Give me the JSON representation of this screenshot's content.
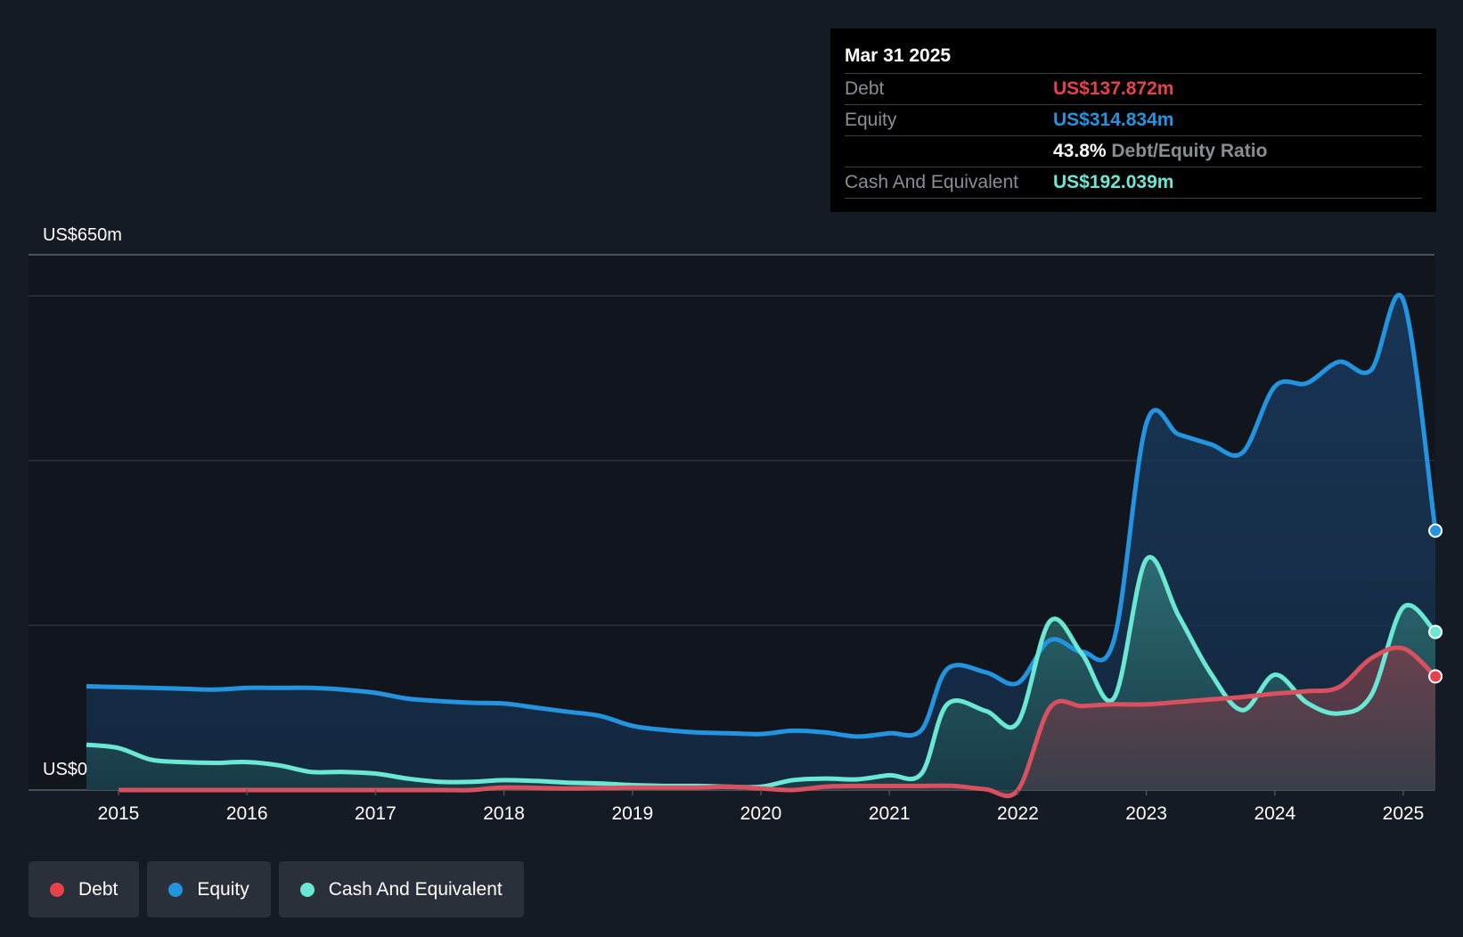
{
  "tooltip": {
    "date": "Mar 31 2025",
    "rows": [
      {
        "label": "Debt",
        "value": "US$137.872m",
        "color": "#e8414b"
      },
      {
        "label": "Equity",
        "value": "US$314.834m",
        "color": "#2394e0"
      },
      {
        "label": "",
        "value": "43.8%",
        "suffix": "Debt/Equity Ratio"
      },
      {
        "label": "Cash And Equivalent",
        "value": "US$192.039m",
        "color": "#6be8d3"
      }
    ]
  },
  "legend": [
    {
      "label": "Debt",
      "color": "#e8414b"
    },
    {
      "label": "Equity",
      "color": "#2394e0"
    },
    {
      "label": "Cash And Equivalent",
      "color": "#6be8d3"
    }
  ],
  "chart_data": {
    "type": "area",
    "ylabel_top": "US$650m",
    "ylabel_bottom": "US$0",
    "ylim": [
      0,
      650
    ],
    "xlim": [
      2014.73,
      2025.25
    ],
    "x_ticks": [
      "2015",
      "2016",
      "2017",
      "2018",
      "2019",
      "2020",
      "2021",
      "2022",
      "2023",
      "2024",
      "2025"
    ],
    "series": [
      {
        "name": "Equity",
        "color": "#2394e0",
        "points": [
          [
            2014.75,
            126
          ],
          [
            2015.0,
            125
          ],
          [
            2015.25,
            124
          ],
          [
            2015.5,
            123
          ],
          [
            2015.75,
            122
          ],
          [
            2016.0,
            124
          ],
          [
            2016.25,
            124
          ],
          [
            2016.5,
            124
          ],
          [
            2016.75,
            122
          ],
          [
            2017.0,
            118
          ],
          [
            2017.25,
            111
          ],
          [
            2017.5,
            108
          ],
          [
            2017.75,
            106
          ],
          [
            2018.0,
            105
          ],
          [
            2018.25,
            100
          ],
          [
            2018.5,
            95
          ],
          [
            2018.75,
            90
          ],
          [
            2019.0,
            78
          ],
          [
            2019.25,
            73
          ],
          [
            2019.5,
            70
          ],
          [
            2019.75,
            69
          ],
          [
            2020.0,
            68
          ],
          [
            2020.25,
            72
          ],
          [
            2020.5,
            70
          ],
          [
            2020.75,
            65
          ],
          [
            2021.0,
            69
          ],
          [
            2021.25,
            73
          ],
          [
            2021.45,
            147
          ],
          [
            2021.75,
            143
          ],
          [
            2022.0,
            130
          ],
          [
            2022.25,
            182
          ],
          [
            2022.5,
            168
          ],
          [
            2022.75,
            183
          ],
          [
            2023.0,
            445
          ],
          [
            2023.25,
            432
          ],
          [
            2023.5,
            420
          ],
          [
            2023.75,
            410
          ],
          [
            2024.0,
            490
          ],
          [
            2024.25,
            494
          ],
          [
            2024.5,
            520
          ],
          [
            2024.75,
            510
          ],
          [
            2025.0,
            595
          ],
          [
            2025.25,
            315
          ]
        ]
      },
      {
        "name": "Cash And Equivalent",
        "color": "#6be8d3",
        "points": [
          [
            2014.75,
            55
          ],
          [
            2015.0,
            51
          ],
          [
            2015.25,
            37
          ],
          [
            2015.5,
            34
          ],
          [
            2015.75,
            33
          ],
          [
            2016.0,
            34
          ],
          [
            2016.25,
            30
          ],
          [
            2016.5,
            22
          ],
          [
            2016.75,
            22
          ],
          [
            2017.0,
            20
          ],
          [
            2017.25,
            14
          ],
          [
            2017.5,
            10
          ],
          [
            2017.75,
            10
          ],
          [
            2018.0,
            12
          ],
          [
            2018.25,
            11
          ],
          [
            2018.5,
            9
          ],
          [
            2018.75,
            8
          ],
          [
            2019.0,
            6
          ],
          [
            2019.25,
            5
          ],
          [
            2019.5,
            5
          ],
          [
            2019.75,
            4
          ],
          [
            2020.0,
            4
          ],
          [
            2020.25,
            12
          ],
          [
            2020.5,
            14
          ],
          [
            2020.75,
            13
          ],
          [
            2021.0,
            18
          ],
          [
            2021.25,
            20
          ],
          [
            2021.45,
            104
          ],
          [
            2021.75,
            96
          ],
          [
            2022.0,
            82
          ],
          [
            2022.25,
            205
          ],
          [
            2022.5,
            165
          ],
          [
            2022.75,
            112
          ],
          [
            2023.0,
            280
          ],
          [
            2023.25,
            212
          ],
          [
            2023.5,
            142
          ],
          [
            2023.75,
            97
          ],
          [
            2024.0,
            140
          ],
          [
            2024.25,
            106
          ],
          [
            2024.5,
            93
          ],
          [
            2024.75,
            115
          ],
          [
            2025.0,
            222
          ],
          [
            2025.25,
            192
          ]
        ]
      },
      {
        "name": "Debt",
        "color": "#e8414b",
        "points": [
          [
            2015.0,
            0
          ],
          [
            2015.5,
            0
          ],
          [
            2016.0,
            0
          ],
          [
            2016.5,
            0
          ],
          [
            2017.0,
            0
          ],
          [
            2017.5,
            0
          ],
          [
            2017.75,
            0
          ],
          [
            2018.0,
            3
          ],
          [
            2018.5,
            2
          ],
          [
            2019.0,
            3
          ],
          [
            2019.5,
            3
          ],
          [
            2019.75,
            4
          ],
          [
            2020.0,
            2
          ],
          [
            2020.25,
            0
          ],
          [
            2020.5,
            4
          ],
          [
            2020.75,
            5
          ],
          [
            2021.0,
            5
          ],
          [
            2021.25,
            5
          ],
          [
            2021.5,
            5
          ],
          [
            2021.75,
            1
          ],
          [
            2022.0,
            0
          ],
          [
            2022.25,
            100
          ],
          [
            2022.5,
            102
          ],
          [
            2022.75,
            104
          ],
          [
            2023.0,
            104
          ],
          [
            2023.25,
            107
          ],
          [
            2023.5,
            110
          ],
          [
            2023.75,
            113
          ],
          [
            2024.0,
            117
          ],
          [
            2024.25,
            120
          ],
          [
            2024.5,
            125
          ],
          [
            2024.75,
            160
          ],
          [
            2025.0,
            172
          ],
          [
            2025.25,
            138
          ]
        ]
      }
    ]
  }
}
